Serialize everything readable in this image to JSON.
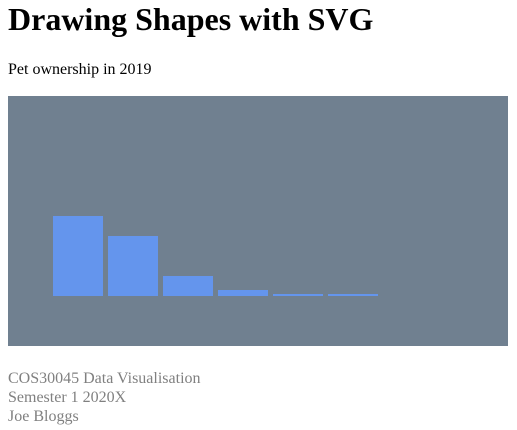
{
  "header": {
    "title": "Drawing Shapes with SVG"
  },
  "chart_data": {
    "type": "bar",
    "title": "Pet ownership in 2019",
    "values": [
      80,
      60,
      20,
      6,
      2,
      2
    ],
    "color": "#6495ed",
    "background": "#708090"
  },
  "footer": {
    "lines": [
      "COS30045 Data Visualisation",
      "Semester 1 2020X",
      "Joe Bloggs"
    ]
  }
}
